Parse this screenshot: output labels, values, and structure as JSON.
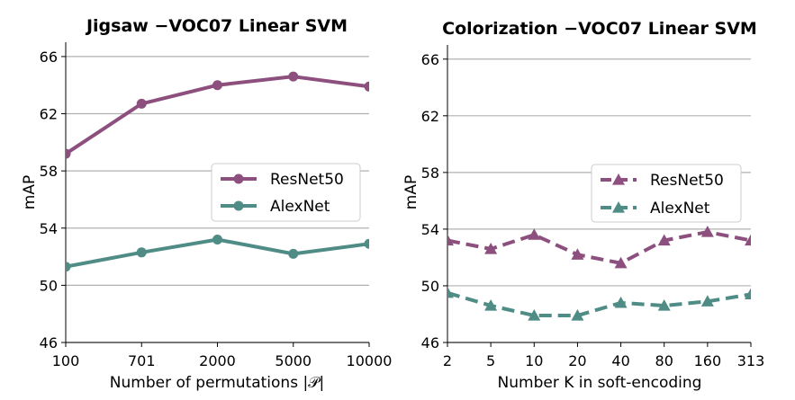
{
  "chart_data": [
    {
      "type": "line",
      "title": "Jigsaw  −VOC07 Linear SVM",
      "xlabel": "Number of permutations |𝒫|",
      "ylabel": "mAP",
      "categories": [
        "100",
        "701",
        "2000",
        "5000",
        "10000"
      ],
      "ylim": [
        46,
        67
      ],
      "yticks": [
        46,
        50,
        54,
        58,
        62,
        66
      ],
      "grid": "horizontal",
      "legend_position": "center-right",
      "marker": "circle",
      "line_style": "solid",
      "series": [
        {
          "name": "ResNet50",
          "color": "#8c4f7e",
          "values": [
            59.2,
            62.7,
            64.0,
            64.6,
            63.9
          ]
        },
        {
          "name": "AlexNet",
          "color": "#4f8c86",
          "values": [
            51.3,
            52.3,
            53.2,
            52.2,
            52.9
          ]
        }
      ]
    },
    {
      "type": "line",
      "title": "Colorization  −VOC07 Linear SVM",
      "xlabel": "Number K in soft-encoding",
      "ylabel": "mAP",
      "categories": [
        "2",
        "5",
        "10",
        "20",
        "40",
        "80",
        "160",
        "313"
      ],
      "ylim": [
        46,
        67
      ],
      "yticks": [
        46,
        50,
        54,
        58,
        62,
        66
      ],
      "grid": "horizontal",
      "legend_position": "center-right",
      "marker": "triangle",
      "line_style": "dashed",
      "series": [
        {
          "name": "ResNet50",
          "color": "#8c4f7e",
          "values": [
            53.2,
            52.6,
            53.6,
            52.2,
            51.6,
            53.2,
            53.8,
            53.2
          ]
        },
        {
          "name": "AlexNet",
          "color": "#4f8c86",
          "values": [
            49.5,
            48.6,
            47.9,
            47.9,
            48.8,
            48.6,
            48.9,
            49.4
          ]
        }
      ]
    }
  ]
}
